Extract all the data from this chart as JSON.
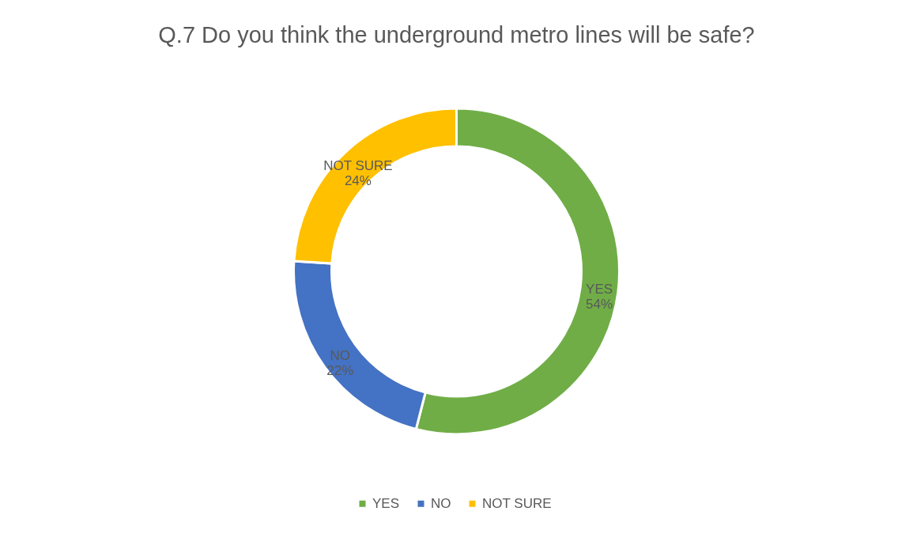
{
  "chart_data": {
    "type": "donut",
    "title": "Q.7 Do you think the underground metro lines will be safe?",
    "categories": [
      "YES",
      "NO",
      "NOT SURE"
    ],
    "values": [
      54,
      22,
      24
    ],
    "value_labels": [
      "54%",
      "22%",
      "24%"
    ],
    "colors": [
      "#70ad47",
      "#4472c4",
      "#ffc000"
    ],
    "legend": "bottom"
  }
}
